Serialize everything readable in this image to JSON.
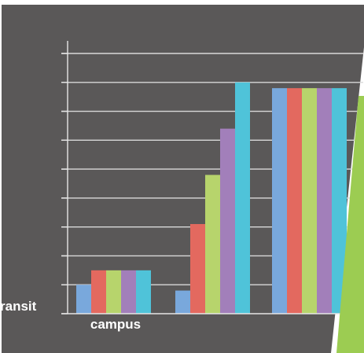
{
  "colors": {
    "background": "#5a5858",
    "gridline": "#d9d9d9",
    "axis": "#e6e6e6",
    "label_text": "#ffffff",
    "accent_wedge": "#9ccc52",
    "page": "#ffffff"
  },
  "chart_data": {
    "type": "bar",
    "title": "",
    "xlabel": "",
    "ylabel": "",
    "ylim": [
      0,
      9
    ],
    "grid": true,
    "gridline_values": [
      1,
      2,
      3,
      4,
      5,
      6,
      7,
      8,
      9
    ],
    "y_tick_labels_visible": false,
    "legend": "none",
    "categories": [
      "ransit",
      "campus",
      ""
    ],
    "category_label_lines": [
      [
        "ransit"
      ],
      [
        "campus"
      ],
      []
    ],
    "series": [
      {
        "color": "#79a8dc",
        "values": [
          1.0,
          0.8,
          7.8
        ]
      },
      {
        "color": "#e3695f",
        "values": [
          1.5,
          3.1,
          7.8
        ]
      },
      {
        "color": "#b7d46c",
        "values": [
          1.5,
          4.8,
          7.8
        ]
      },
      {
        "color": "#a27fba",
        "values": [
          1.5,
          6.4,
          7.8
        ]
      },
      {
        "color": "#4fc3d9",
        "values": [
          1.5,
          8.0,
          7.8
        ]
      }
    ]
  }
}
